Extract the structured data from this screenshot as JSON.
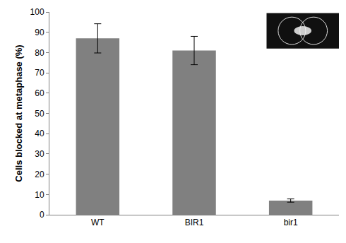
{
  "chart_data": {
    "type": "bar",
    "y_label": "Cells blocked at metaphase (%)",
    "categories": [
      "WT",
      "BIR1",
      "bir1"
    ],
    "values": [
      87,
      81,
      7
    ],
    "errors": [
      7.2,
      7,
      0.8
    ],
    "color": "#808080",
    "ylim": [
      0,
      100
    ],
    "yticks": [
      0,
      10,
      20,
      30,
      40,
      50,
      60,
      70,
      80,
      90,
      100
    ],
    "grid": false
  }
}
